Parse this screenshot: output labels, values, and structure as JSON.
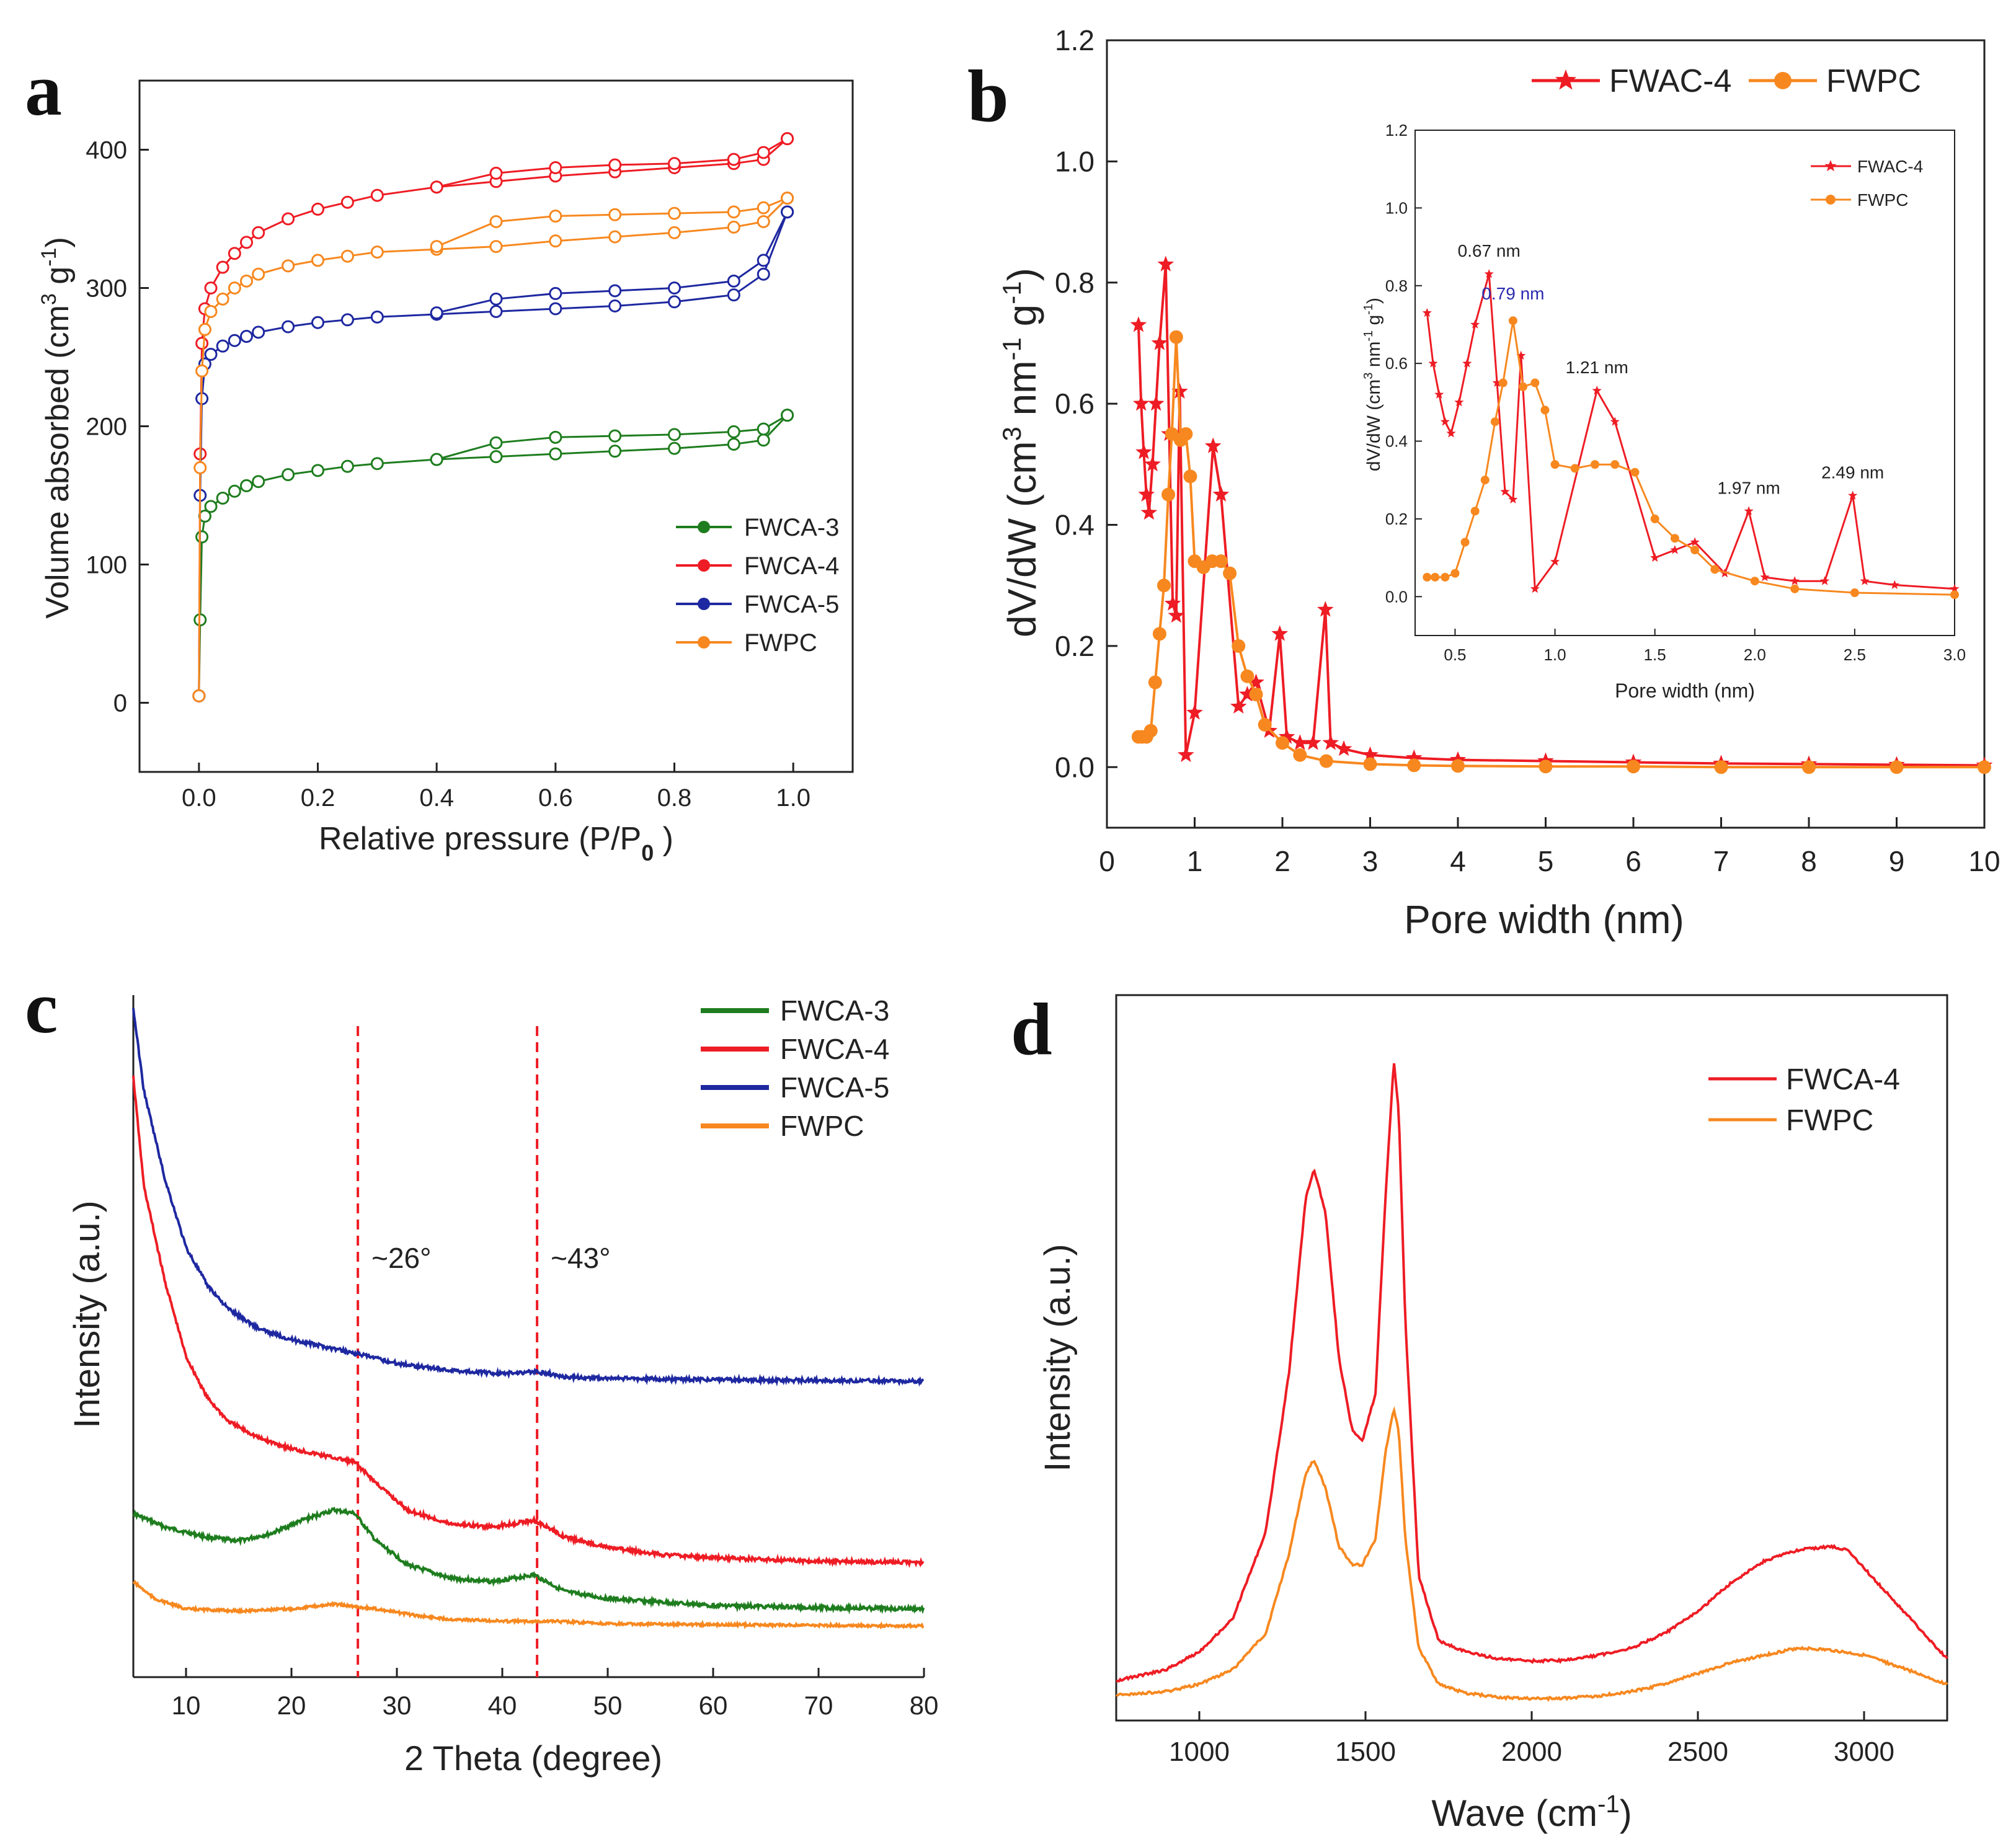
{
  "colors": {
    "green": "#1e7d1e",
    "red": "#ee1c24",
    "blue": "#1e28a0",
    "orange": "#f7881f",
    "dashed": "#ee1c24"
  },
  "chart_data": [
    {
      "id": "a",
      "type": "line",
      "letter": "a",
      "xlabel_main": "Relative pressure (P/P",
      "xlabel_sub": "0",
      "xlabel_end": " )",
      "ylabel_main": "Volume absorbed (cm",
      "ylabel_sup1": "3",
      "ylabel_mid": " g",
      "ylabel_sup2": "-1",
      "ylabel_end": ")",
      "xlim": [
        -0.1,
        1.1
      ],
      "ylim": [
        -50,
        450
      ],
      "xticks": [
        0.0,
        0.2,
        0.4,
        0.6,
        0.8,
        1.0
      ],
      "xticklabels": [
        "0.0",
        "0.2",
        "0.4",
        "0.6",
        "0.8",
        "1.0"
      ],
      "yticks": [
        0,
        100,
        200,
        300,
        400
      ],
      "yticklabels": [
        "0",
        "100",
        "200",
        "300",
        "400"
      ],
      "legend": [
        "FWCA-3",
        "FWCA-4",
        "FWCA-5",
        "FWPC"
      ],
      "series": [
        {
          "name": "FWCA-3",
          "color": "green",
          "x": [
            0.0,
            0.002,
            0.005,
            0.01,
            0.02,
            0.04,
            0.06,
            0.08,
            0.1,
            0.15,
            0.2,
            0.25,
            0.3,
            0.4,
            0.5,
            0.6,
            0.7,
            0.8,
            0.9,
            0.95,
            0.99
          ],
          "ads": [
            5,
            60,
            120,
            135,
            142,
            148,
            153,
            157,
            160,
            165,
            168,
            171,
            173,
            176,
            178,
            180,
            182,
            184,
            187,
            190,
            208
          ],
          "des": [
            176,
            188,
            192,
            193,
            194,
            196,
            198,
            208
          ],
          "des_x": [
            0.4,
            0.5,
            0.6,
            0.7,
            0.8,
            0.9,
            0.95,
            0.99
          ]
        },
        {
          "name": "FWCA-4",
          "color": "red",
          "x": [
            0.0,
            0.002,
            0.005,
            0.01,
            0.02,
            0.04,
            0.06,
            0.08,
            0.1,
            0.15,
            0.2,
            0.25,
            0.3,
            0.4,
            0.5,
            0.6,
            0.7,
            0.8,
            0.9,
            0.95,
            0.99
          ],
          "ads": [
            5,
            180,
            260,
            285,
            300,
            315,
            325,
            333,
            340,
            350,
            357,
            362,
            367,
            373,
            377,
            381,
            384,
            387,
            390,
            393,
            408
          ],
          "des": [
            373,
            383,
            387,
            389,
            390,
            393,
            398,
            408
          ],
          "des_x": [
            0.4,
            0.5,
            0.6,
            0.7,
            0.8,
            0.9,
            0.95,
            0.99
          ]
        },
        {
          "name": "FWCA-5",
          "color": "blue",
          "x": [
            0.0,
            0.002,
            0.005,
            0.01,
            0.02,
            0.04,
            0.06,
            0.08,
            0.1,
            0.15,
            0.2,
            0.25,
            0.3,
            0.4,
            0.5,
            0.6,
            0.7,
            0.8,
            0.9,
            0.95,
            0.99
          ],
          "ads": [
            5,
            150,
            220,
            245,
            252,
            258,
            262,
            265,
            268,
            272,
            275,
            277,
            279,
            281,
            283,
            285,
            287,
            290,
            295,
            310,
            355
          ],
          "des": [
            282,
            292,
            296,
            298,
            300,
            305,
            320,
            355
          ],
          "des_x": [
            0.4,
            0.5,
            0.6,
            0.7,
            0.8,
            0.9,
            0.95,
            0.99
          ]
        },
        {
          "name": "FWPC",
          "color": "orange",
          "x": [
            0.0,
            0.002,
            0.005,
            0.01,
            0.02,
            0.04,
            0.06,
            0.08,
            0.1,
            0.15,
            0.2,
            0.25,
            0.3,
            0.4,
            0.5,
            0.6,
            0.7,
            0.8,
            0.9,
            0.95,
            0.99
          ],
          "ads": [
            5,
            170,
            240,
            270,
            283,
            292,
            300,
            305,
            310,
            316,
            320,
            323,
            326,
            328,
            330,
            334,
            337,
            340,
            344,
            348,
            365
          ],
          "des": [
            330,
            348,
            352,
            353,
            354,
            355,
            358,
            365
          ],
          "des_x": [
            0.4,
            0.5,
            0.6,
            0.7,
            0.8,
            0.9,
            0.95,
            0.99
          ]
        }
      ]
    },
    {
      "id": "b",
      "type": "line",
      "letter": "b",
      "xlabel": "Pore width (nm)",
      "ylabel_main": "dV/dW (cm",
      "ylabel_sup1": "3",
      "ylabel_mid": " nm",
      "ylabel_sup2": "-1",
      "ylabel_mid2": " g",
      "ylabel_sup3": "-1",
      "ylabel_end": ")",
      "xlim": [
        0,
        10
      ],
      "ylim": [
        -0.1,
        1.2
      ],
      "xticks": [
        0,
        1,
        2,
        3,
        4,
        5,
        6,
        7,
        8,
        9,
        10
      ],
      "xticklabels": [
        "0",
        "1",
        "2",
        "3",
        "4",
        "5",
        "6",
        "7",
        "8",
        "9",
        "10"
      ],
      "yticks": [
        0.0,
        0.2,
        0.4,
        0.6,
        0.8,
        1.0,
        1.2
      ],
      "yticklabels": [
        "0.0",
        "0.2",
        "0.4",
        "0.6",
        "0.8",
        "1.0",
        "1.2"
      ],
      "legend": [
        "FWAC-4",
        "FWPC"
      ],
      "series": [
        {
          "name": "FWAC-4",
          "color": "red",
          "marker": "star",
          "x": [
            0.36,
            0.39,
            0.42,
            0.45,
            0.48,
            0.52,
            0.56,
            0.6,
            0.67,
            0.71,
            0.75,
            0.79,
            0.83,
            0.9,
            1.0,
            1.21,
            1.3,
            1.5,
            1.6,
            1.7,
            1.85,
            1.97,
            2.05,
            2.2,
            2.35,
            2.49,
            2.55,
            2.7,
            3.0,
            3.5,
            4.0,
            5.0,
            6.0,
            7.0,
            8.0,
            9.0,
            10.0
          ],
          "y": [
            0.73,
            0.6,
            0.52,
            0.45,
            0.42,
            0.5,
            0.6,
            0.7,
            0.83,
            0.55,
            0.27,
            0.25,
            0.62,
            0.02,
            0.09,
            0.53,
            0.45,
            0.1,
            0.12,
            0.14,
            0.06,
            0.22,
            0.05,
            0.04,
            0.04,
            0.26,
            0.04,
            0.03,
            0.02,
            0.015,
            0.012,
            0.01,
            0.008,
            0.006,
            0.005,
            0.004,
            0.003
          ]
        },
        {
          "name": "FWPC",
          "color": "orange",
          "marker": "circle",
          "x": [
            0.36,
            0.4,
            0.45,
            0.5,
            0.55,
            0.6,
            0.65,
            0.7,
            0.74,
            0.79,
            0.84,
            0.9,
            0.95,
            1.0,
            1.1,
            1.2,
            1.3,
            1.4,
            1.5,
            1.6,
            1.7,
            1.8,
            2.0,
            2.2,
            2.5,
            3.0,
            3.5,
            4.0,
            5.0,
            6.0,
            7.0,
            8.0,
            9.0,
            10.0
          ],
          "y": [
            0.05,
            0.05,
            0.05,
            0.06,
            0.14,
            0.22,
            0.3,
            0.45,
            0.55,
            0.71,
            0.54,
            0.55,
            0.48,
            0.34,
            0.33,
            0.34,
            0.34,
            0.32,
            0.2,
            0.15,
            0.12,
            0.07,
            0.04,
            0.02,
            0.01,
            0.005,
            0.003,
            0.002,
            0.001,
            0.001,
            0.0,
            0.0,
            0.0,
            0.0
          ]
        }
      ],
      "inset": {
        "xlabel": "Pore width (nm)",
        "ylabel_main": "dV/dW (cm",
        "ylabel_sup1": "3",
        "ylabel_mid": " nm",
        "ylabel_sup2": "-1",
        "ylabel_mid2": " g",
        "ylabel_sup3": "-1",
        "ylabel_end": ")",
        "xlim": [
          0.3,
          3.0
        ],
        "ylim": [
          -0.1,
          1.2
        ],
        "xticks": [
          0.5,
          1.0,
          1.5,
          2.0,
          2.5,
          3.0
        ],
        "xticklabels": [
          "0.5",
          "1.0",
          "1.5",
          "2.0",
          "2.5",
          "3.0"
        ],
        "yticks": [
          0.0,
          0.2,
          0.4,
          0.6,
          0.8,
          1.0,
          1.2
        ],
        "yticklabels": [
          "0.0",
          "0.2",
          "0.4",
          "0.6",
          "0.8",
          "1.0",
          "1.2"
        ],
        "legend": [
          "FWAC-4",
          "FWPC"
        ],
        "annotations": [
          {
            "text": "0.67 nm",
            "x": 0.67,
            "y": 0.83,
            "color": "#222"
          },
          {
            "text": "0.79 nm",
            "x": 0.79,
            "y": 0.72,
            "color": "#2b2bb0"
          },
          {
            "text": "1.21 nm",
            "x": 1.21,
            "y": 0.53,
            "color": "#222"
          },
          {
            "text": "1.97 nm",
            "x": 1.97,
            "y": 0.22,
            "color": "#222"
          },
          {
            "text": "2.49 nm",
            "x": 2.49,
            "y": 0.26,
            "color": "#222"
          }
        ]
      }
    },
    {
      "id": "c",
      "type": "line",
      "letter": "c",
      "xlabel": "2 Theta (degree)",
      "ylabel": "Intensity (a.u.)",
      "xlim": [
        5,
        80
      ],
      "ylim": [
        0,
        1
      ],
      "xticks": [
        10,
        20,
        30,
        40,
        50,
        60,
        70,
        80
      ],
      "xticklabels": [
        "10",
        "20",
        "30",
        "40",
        "50",
        "60",
        "70",
        "80"
      ],
      "legend": [
        "FWCA-3",
        "FWCA-4",
        "FWCA-5",
        "FWPC"
      ],
      "annotations": [
        {
          "text": "~26°",
          "x": 26.3
        },
        {
          "text": "~43°",
          "x": 43.3
        }
      ],
      "series": [
        {
          "name": "FWCA-3",
          "color": "green",
          "x": [
            5,
            8,
            12,
            15,
            18,
            21,
            24,
            26,
            28,
            31,
            35,
            39,
            43,
            46,
            50,
            55,
            60,
            70,
            80
          ],
          "y": [
            0.24,
            0.22,
            0.205,
            0.2,
            0.21,
            0.23,
            0.245,
            0.24,
            0.2,
            0.165,
            0.145,
            0.14,
            0.15,
            0.125,
            0.115,
            0.11,
            0.105,
            0.102,
            0.1
          ]
        },
        {
          "name": "FWCA-4",
          "color": "red",
          "x": [
            5,
            6,
            8,
            10,
            12,
            14,
            17,
            20,
            23,
            26,
            28,
            31,
            35,
            39,
            43,
            46,
            50,
            55,
            60,
            70,
            80
          ],
          "y": [
            0.88,
            0.72,
            0.58,
            0.47,
            0.41,
            0.375,
            0.35,
            0.335,
            0.325,
            0.315,
            0.285,
            0.245,
            0.225,
            0.22,
            0.23,
            0.205,
            0.19,
            0.18,
            0.175,
            0.17,
            0.168
          ]
        },
        {
          "name": "FWCA-5",
          "color": "blue",
          "x": [
            5,
            6,
            8,
            10,
            12,
            14,
            17,
            20,
            23,
            26,
            30,
            35,
            40,
            43,
            46,
            50,
            55,
            60,
            70,
            80
          ],
          "y": [
            0.98,
            0.86,
            0.73,
            0.63,
            0.575,
            0.54,
            0.51,
            0.495,
            0.485,
            0.475,
            0.46,
            0.45,
            0.445,
            0.448,
            0.44,
            0.438,
            0.437,
            0.436,
            0.435,
            0.434
          ]
        },
        {
          "name": "FWPC",
          "color": "orange",
          "x": [
            5,
            7,
            10,
            15,
            20,
            24,
            28,
            32,
            35,
            40,
            45,
            50,
            60,
            70,
            80
          ],
          "y": [
            0.14,
            0.115,
            0.1,
            0.097,
            0.1,
            0.107,
            0.1,
            0.09,
            0.085,
            0.082,
            0.082,
            0.078,
            0.077,
            0.076,
            0.075
          ]
        }
      ]
    },
    {
      "id": "d",
      "type": "line",
      "letter": "d",
      "xlabel_main": "Wave (cm",
      "xlabel_sup": "-1",
      "xlabel_end": ")",
      "ylabel": "Intensity (a.u.)",
      "xlim": [
        750,
        3250
      ],
      "ylim": [
        0,
        1
      ],
      "xticks": [
        1000,
        1500,
        2000,
        2500,
        3000
      ],
      "xticklabels": [
        "1000",
        "1500",
        "2000",
        "2500",
        "3000"
      ],
      "legend": [
        "FWCA-4",
        "FWPC"
      ],
      "series": [
        {
          "name": "FWCA-4",
          "color": "red",
          "x": [
            750,
            900,
            1000,
            1100,
            1200,
            1270,
            1320,
            1345,
            1380,
            1420,
            1460,
            1490,
            1530,
            1560,
            1585,
            1600,
            1620,
            1660,
            1720,
            1800,
            1900,
            2000,
            2100,
            2200,
            2300,
            2400,
            2500,
            2600,
            2700,
            2800,
            2900,
            2950,
            3000,
            3100,
            3250
          ],
          "y": [
            0.055,
            0.07,
            0.095,
            0.14,
            0.26,
            0.48,
            0.72,
            0.76,
            0.7,
            0.5,
            0.4,
            0.385,
            0.45,
            0.72,
            0.91,
            0.84,
            0.55,
            0.2,
            0.11,
            0.095,
            0.085,
            0.082,
            0.083,
            0.09,
            0.1,
            0.12,
            0.15,
            0.19,
            0.22,
            0.235,
            0.24,
            0.235,
            0.21,
            0.16,
            0.085
          ]
        },
        {
          "name": "FWPC",
          "color": "orange",
          "x": [
            750,
            900,
            1000,
            1100,
            1200,
            1270,
            1320,
            1345,
            1380,
            1420,
            1460,
            1490,
            1530,
            1560,
            1585,
            1600,
            1620,
            1660,
            1720,
            1800,
            1900,
            2000,
            2100,
            2200,
            2300,
            2400,
            2500,
            2600,
            2700,
            2800,
            2900,
            3000,
            3100,
            3250
          ],
          "y": [
            0.035,
            0.04,
            0.05,
            0.07,
            0.12,
            0.23,
            0.34,
            0.36,
            0.32,
            0.24,
            0.215,
            0.215,
            0.25,
            0.37,
            0.43,
            0.4,
            0.25,
            0.1,
            0.05,
            0.038,
            0.032,
            0.03,
            0.031,
            0.034,
            0.04,
            0.05,
            0.065,
            0.08,
            0.09,
            0.1,
            0.097,
            0.09,
            0.075,
            0.05
          ]
        }
      ]
    }
  ]
}
